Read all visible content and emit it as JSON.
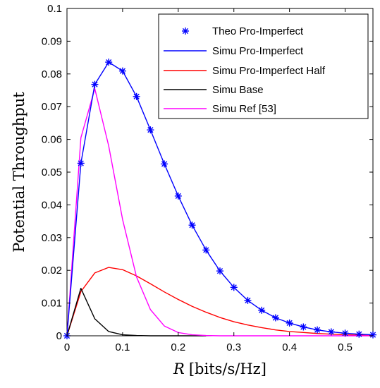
{
  "chart_data": {
    "type": "line",
    "xlabel_var": "R",
    "xlabel_unit": "[bits/s/Hz]",
    "ylabel": "Potential Throughput",
    "xlim": [
      0,
      0.55
    ],
    "ylim": [
      0,
      0.1
    ],
    "xticks": [
      0,
      0.1,
      0.2,
      0.3,
      0.4,
      0.5
    ],
    "xtick_labels": [
      "0",
      "0.1",
      "0.2",
      "0.3",
      "0.4",
      "0.5"
    ],
    "yticks": [
      0,
      0.01,
      0.02,
      0.03,
      0.04,
      0.05,
      0.06,
      0.07,
      0.08,
      0.09,
      0.1
    ],
    "ytick_labels": [
      "0",
      "0.01",
      "0.02",
      "0.03",
      "0.04",
      "0.05",
      "0.06",
      "0.07",
      "0.08",
      "0.09",
      "0.1"
    ],
    "grid": false,
    "legend_position": "top-right",
    "series": [
      {
        "name": "Theo Pro-Imperfect",
        "style": "marker",
        "marker": "asterisk",
        "color": "#0000ff",
        "x": [
          0,
          0.025,
          0.05,
          0.075,
          0.1,
          0.125,
          0.15,
          0.175,
          0.2,
          0.225,
          0.25,
          0.275,
          0.3,
          0.325,
          0.35,
          0.375,
          0.4,
          0.425,
          0.45,
          0.475,
          0.5,
          0.525,
          0.55
        ],
        "y": [
          0,
          0.0527,
          0.0768,
          0.0836,
          0.0809,
          0.0731,
          0.0629,
          0.0525,
          0.0427,
          0.0338,
          0.0262,
          0.0198,
          0.0148,
          0.0108,
          0.0078,
          0.0055,
          0.0039,
          0.0027,
          0.0018,
          0.0012,
          0.0008,
          0.0005,
          0.0003
        ]
      },
      {
        "name": "Simu Pro-Imperfect",
        "style": "line",
        "color": "#0000ff",
        "x": [
          0,
          0.025,
          0.05,
          0.075,
          0.1,
          0.125,
          0.15,
          0.175,
          0.2,
          0.225,
          0.25,
          0.275,
          0.3,
          0.325,
          0.35,
          0.375,
          0.4,
          0.425,
          0.45,
          0.475,
          0.5,
          0.525,
          0.55
        ],
        "y": [
          0,
          0.0527,
          0.0768,
          0.0836,
          0.0809,
          0.0731,
          0.0629,
          0.0525,
          0.0427,
          0.0338,
          0.0262,
          0.0198,
          0.0148,
          0.0108,
          0.0078,
          0.0055,
          0.0039,
          0.0027,
          0.0018,
          0.0012,
          0.0008,
          0.0005,
          0.0003
        ]
      },
      {
        "name": "Simu Pro-Imperfect Half",
        "style": "line",
        "color": "#ff0000",
        "x": [
          0,
          0.025,
          0.05,
          0.075,
          0.1,
          0.125,
          0.15,
          0.175,
          0.2,
          0.225,
          0.25,
          0.275,
          0.3,
          0.325,
          0.35,
          0.375,
          0.4,
          0.425,
          0.45,
          0.475,
          0.5,
          0.525,
          0.55
        ],
        "y": [
          0,
          0.0135,
          0.0192,
          0.0209,
          0.0202,
          0.0183,
          0.0159,
          0.0134,
          0.0111,
          0.009,
          0.0072,
          0.0056,
          0.0043,
          0.0033,
          0.0025,
          0.0018,
          0.0013,
          0.001,
          0.0007,
          0.0005,
          0.0003,
          0.0002,
          0.0001
        ]
      },
      {
        "name": "Simu Base",
        "style": "line",
        "color": "#000000",
        "x": [
          0,
          0.025,
          0.05,
          0.075,
          0.1,
          0.125,
          0.15,
          0.175,
          0.2,
          0.225,
          0.25
        ],
        "y": [
          0,
          0.0145,
          0.0052,
          0.0013,
          0.0003,
          0.0001,
          0,
          0,
          0,
          0,
          0
        ]
      },
      {
        "name": "Simu Ref [53]",
        "style": "line",
        "color": "#ff00ff",
        "x": [
          0,
          0.025,
          0.05,
          0.075,
          0.1,
          0.125,
          0.15,
          0.175,
          0.2,
          0.225,
          0.25,
          0.275,
          0.3,
          0.35,
          0.4,
          0.45,
          0.5,
          0.55
        ],
        "y": [
          0,
          0.0605,
          0.0755,
          0.058,
          0.0355,
          0.018,
          0.008,
          0.003,
          0.001,
          0.0003,
          0.0001,
          0,
          0,
          0,
          0,
          0,
          0,
          0
        ]
      }
    ]
  }
}
